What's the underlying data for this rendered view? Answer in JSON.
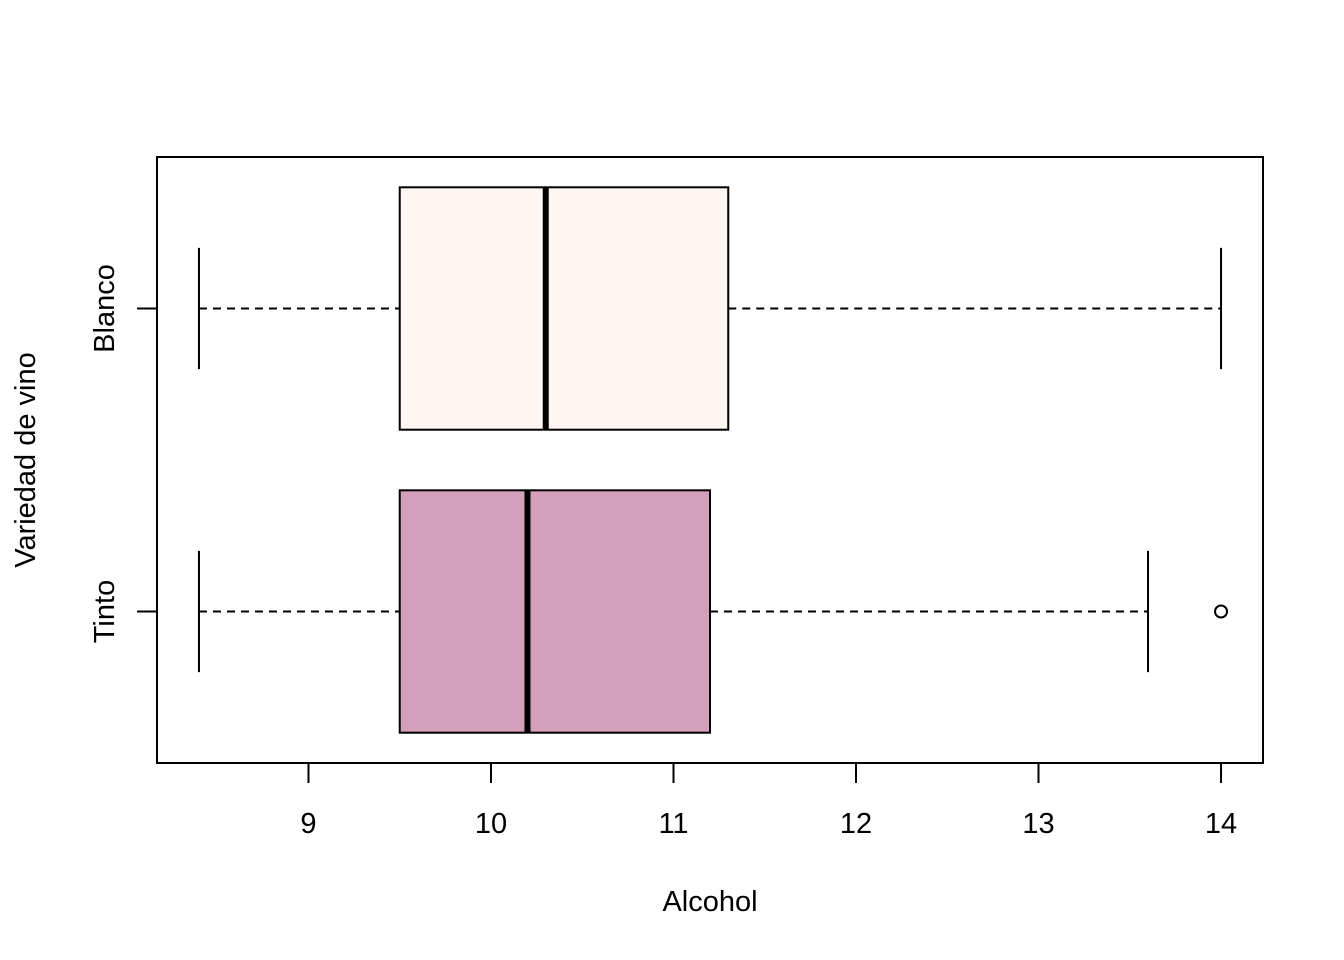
{
  "chart_data": {
    "type": "boxplot",
    "orientation": "horizontal",
    "title": "",
    "xlabel": "Alcohol",
    "ylabel": "Variedad de vino",
    "xlim": [
      8.17,
      14.23
    ],
    "xticks": [
      9,
      10,
      11,
      12,
      13,
      14
    ],
    "grid": false,
    "legend": "none",
    "categories": [
      "Tinto",
      "Blanco"
    ],
    "series": [
      {
        "category": "Tinto",
        "whisker_low": 8.4,
        "q1": 9.5,
        "median": 10.2,
        "q3": 11.2,
        "whisker_high": 13.6,
        "outliers": [
          14.0
        ],
        "color": "#d39fba"
      },
      {
        "category": "Blanco",
        "whisker_low": 8.4,
        "q1": 9.5,
        "median": 10.3,
        "q3": 11.3,
        "whisker_high": 14.0,
        "outliers": [],
        "color": "#fff5f2"
      }
    ]
  }
}
